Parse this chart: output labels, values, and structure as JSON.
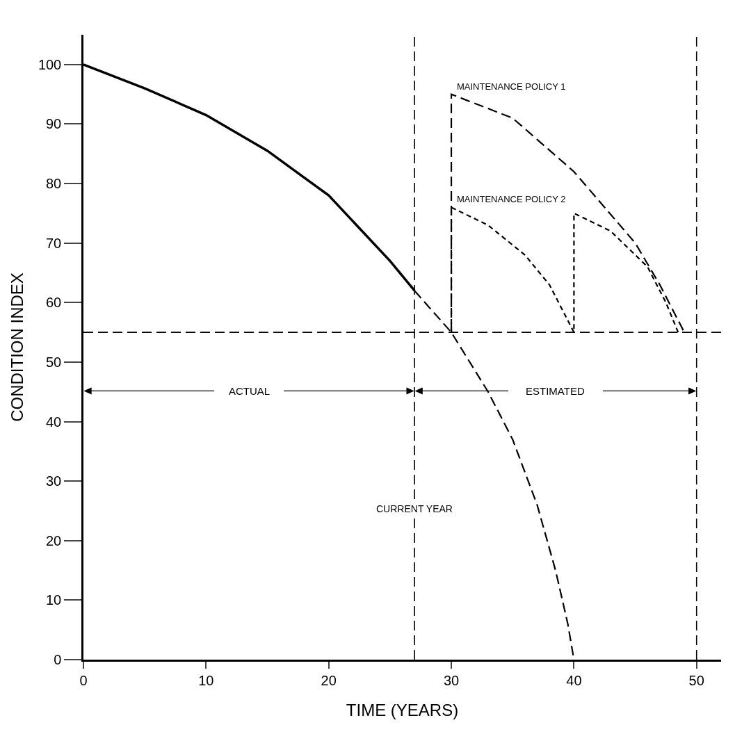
{
  "chart_data": {
    "type": "line",
    "xlabel": "TIME (YEARS)",
    "ylabel": "CONDITION INDEX",
    "xlim": [
      0,
      52
    ],
    "ylim": [
      0,
      105
    ],
    "xticks": [
      0,
      10,
      20,
      30,
      40,
      50
    ],
    "yticks": [
      0,
      10,
      20,
      30,
      40,
      50,
      60,
      70,
      80,
      90,
      100
    ],
    "grid": false,
    "legend": false,
    "marker": "none",
    "series": [
      {
        "color": "#000000",
        "line_style": "solid",
        "x": [
          0,
          5,
          10,
          15,
          20,
          25,
          27
        ],
        "values": [
          100,
          96,
          91.5,
          85.5,
          78,
          67,
          62
        ]
      },
      {
        "color": "#000000",
        "line_style": "dashed",
        "x": [
          27,
          30,
          33,
          35,
          37,
          38.5,
          39.5,
          40
        ],
        "values": [
          62,
          55,
          45,
          37,
          26,
          15,
          6,
          0
        ]
      },
      {
        "name": "MAINTENANCE POLICY 1",
        "color": "#000000",
        "line_style": "dashed",
        "x": [
          30,
          30,
          35,
          40,
          45,
          47,
          48.5,
          49
        ],
        "values": [
          55,
          95,
          91,
          82,
          70,
          63,
          57,
          55
        ]
      },
      {
        "name": "MAINTENANCE POLICY 2",
        "color": "#000000",
        "line_style": "dotted",
        "x": [
          30,
          30,
          33,
          36,
          38,
          39.5,
          40,
          40,
          43,
          46,
          47.5,
          48.5
        ],
        "values": [
          55,
          76,
          73,
          68,
          63,
          57,
          55,
          75,
          72,
          66,
          60,
          55
        ]
      }
    ],
    "ref_lines": [
      {
        "axis": "y",
        "value": 55,
        "line_style": "dashed"
      },
      {
        "axis": "x",
        "value": 27,
        "label": "CURRENT YEAR",
        "line_style": "dashed"
      },
      {
        "axis": "x",
        "value": 50,
        "line_style": "dashed"
      }
    ],
    "annotations": [
      "ACTUAL",
      "ESTIMATED"
    ]
  }
}
